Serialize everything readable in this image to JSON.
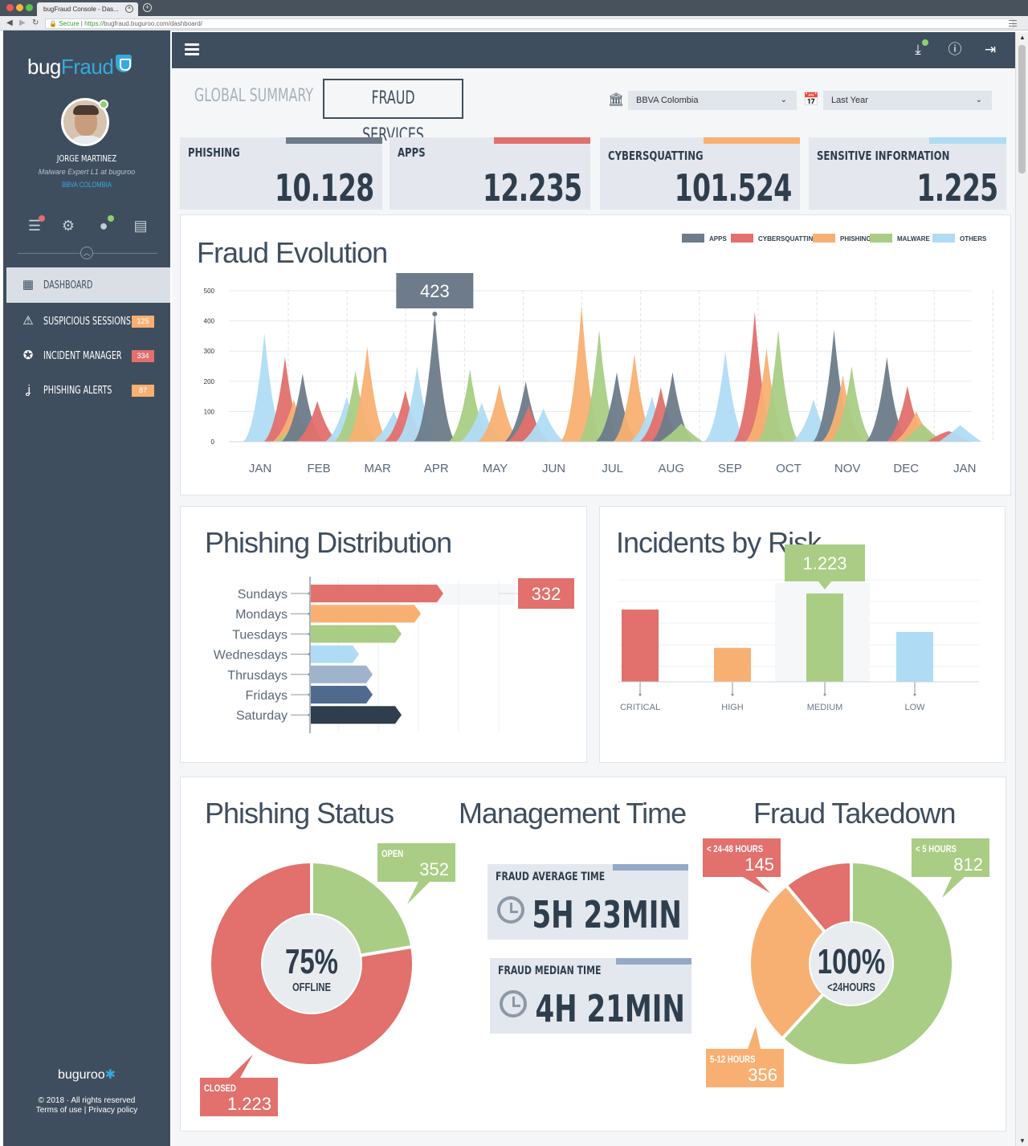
{
  "browser": {
    "tab_title": "bugFraud Console - Das...",
    "secure_label": "Secure",
    "url_scheme": "https://",
    "url_rest": "bugfraud.buguroo.com/dashboard/"
  },
  "sidebar": {
    "logo_bug": "bug",
    "logo_fraud": "Fraud",
    "user_name": "JORGE MARTINEZ",
    "user_role": "Malware Expert L1 at buguroo",
    "user_org": "BBVA COLOMBIA",
    "nav": [
      {
        "label": "DASHBOARD",
        "badge": ""
      },
      {
        "label": "SUSPICIOUS SESSIONS",
        "badge": "125"
      },
      {
        "label": "INCIDENT MANAGER",
        "badge": "334"
      },
      {
        "label": "PHISHING ALERTS",
        "badge": "87"
      }
    ],
    "footer_logo_a": "buguroo",
    "copyright": "© 2018 · All rights reserved",
    "terms": "Terms of use",
    "separator": "|",
    "privacy": "Privacy policy"
  },
  "colors": {
    "apps": "#6d7b8a",
    "cybersquatting": "#e2706c",
    "phishing": "#f8b072",
    "malware": "#a9cd84",
    "others": "#afdcf4",
    "thursdays": "#9fb3cc",
    "fridays": "#506a8e",
    "saturday": "#2f3e4d"
  },
  "header": {
    "tab_global": "GLOBAL SUMMARY",
    "tab_fraud": "FRAUD SERVICES",
    "entity_select": "BBVA Colombia",
    "period_select": "Last Year"
  },
  "kpis": [
    {
      "label": "PHISHING",
      "value": "10.128",
      "color": "#6d7b8a"
    },
    {
      "label": "APPS",
      "value": "12.235",
      "color": "#e2706c"
    },
    {
      "label": "CYBERSQUATTING",
      "value": "101.524",
      "color": "#f8b072"
    },
    {
      "label": "SENSITIVE INFORMATION",
      "value": "1.225",
      "color": "#afdcf4"
    }
  ],
  "chart_data": [
    {
      "type": "area",
      "title": "Fraud Evolution",
      "legend": [
        "APPS",
        "CYBERSQUATTING",
        "PHISHING",
        "MALWARE",
        "OTHERS"
      ],
      "legend_placement": "top-right",
      "categories": [
        "JAN",
        "FEB",
        "MAR",
        "APR",
        "MAY",
        "JUN",
        "JUL",
        "AUG",
        "SEP",
        "OCT",
        "NOV",
        "DEC",
        "JAN"
      ],
      "yticks": [
        "0",
        "100",
        "200",
        "300",
        "400",
        "500"
      ],
      "ylim": [
        0,
        500
      ],
      "highlight": {
        "label": "423",
        "value": 423,
        "month": "APR"
      },
      "peaks": [
        {
          "series": "OTHERS",
          "x": 0.1,
          "y": 360
        },
        {
          "series": "CYBERSQUATTING",
          "x": 0.45,
          "y": 280
        },
        {
          "series": "PHISHING",
          "x": 0.6,
          "y": 140
        },
        {
          "series": "MALWARE",
          "x": 0.65,
          "y": 60
        },
        {
          "series": "APPS",
          "x": 0.75,
          "y": 225
        },
        {
          "series": "CYBERSQUATTING",
          "x": 1.0,
          "y": 135
        },
        {
          "series": "OTHERS",
          "x": 1.5,
          "y": 150
        },
        {
          "series": "MALWARE",
          "x": 1.65,
          "y": 235
        },
        {
          "series": "PHISHING",
          "x": 1.85,
          "y": 315
        },
        {
          "series": "OTHERS",
          "x": 2.3,
          "y": 100
        },
        {
          "series": "CYBERSQUATTING",
          "x": 2.5,
          "y": 170
        },
        {
          "series": "OTHERS",
          "x": 2.7,
          "y": 250
        },
        {
          "series": "APPS",
          "x": 3.0,
          "y": 423
        },
        {
          "series": "MALWARE",
          "x": 3.6,
          "y": 240
        },
        {
          "series": "OTHERS",
          "x": 3.8,
          "y": 130
        },
        {
          "series": "PHISHING",
          "x": 4.1,
          "y": 190
        },
        {
          "series": "APPS",
          "x": 4.55,
          "y": 200
        },
        {
          "series": "CYBERSQUATTING",
          "x": 4.6,
          "y": 120
        },
        {
          "series": "OTHERS",
          "x": 4.85,
          "y": 110
        },
        {
          "series": "PHISHING",
          "x": 5.5,
          "y": 450
        },
        {
          "series": "MALWARE",
          "x": 5.8,
          "y": 370
        },
        {
          "series": "APPS",
          "x": 6.1,
          "y": 230
        },
        {
          "series": "PHISHING",
          "x": 6.4,
          "y": 290
        },
        {
          "series": "OTHERS",
          "x": 6.7,
          "y": 150
        },
        {
          "series": "CYBERSQUATTING",
          "x": 6.85,
          "y": 180
        },
        {
          "series": "APPS",
          "x": 7.05,
          "y": 230
        },
        {
          "series": "MALWARE",
          "x": 7.2,
          "y": 60
        },
        {
          "series": "OTHERS",
          "x": 7.95,
          "y": 300
        },
        {
          "series": "CYBERSQUATTING",
          "x": 8.45,
          "y": 430
        },
        {
          "series": "PHISHING",
          "x": 8.65,
          "y": 310
        },
        {
          "series": "MALWARE",
          "x": 8.85,
          "y": 370
        },
        {
          "series": "OTHERS",
          "x": 9.45,
          "y": 140
        },
        {
          "series": "APPS",
          "x": 9.8,
          "y": 370
        },
        {
          "series": "PHISHING",
          "x": 9.95,
          "y": 220
        },
        {
          "series": "MALWARE",
          "x": 10.1,
          "y": 250
        },
        {
          "series": "APPS",
          "x": 10.7,
          "y": 280
        },
        {
          "series": "CYBERSQUATTING",
          "x": 11.05,
          "y": 185
        },
        {
          "series": "PHISHING",
          "x": 11.2,
          "y": 100
        },
        {
          "series": "MALWARE",
          "x": 11.3,
          "y": 60
        },
        {
          "series": "CYBERSQUATTING",
          "x": 11.75,
          "y": 35
        },
        {
          "series": "OTHERS",
          "x": 11.95,
          "y": 55
        }
      ]
    },
    {
      "type": "bar",
      "orientation": "horizontal",
      "title": "Phishing Distribution",
      "categories": [
        "Sundays",
        "Mondays",
        "Tuesdays",
        "Wednesdays",
        "Thrusdays",
        "Fridays",
        "Saturday"
      ],
      "values": [
        332,
        276,
        228,
        122,
        156,
        156,
        228
      ],
      "highlight_label": "332"
    },
    {
      "type": "bar",
      "title": "Incidents by Risk",
      "categories": [
        "CRITICAL",
        "HIGH",
        "MEDIUM",
        "LOW"
      ],
      "values": [
        1000,
        470,
        1223,
        690
      ],
      "highlight_label": "1.223"
    },
    {
      "type": "pie",
      "title": "Phishing Status",
      "center_value": "75%",
      "center_label": "OFFLINE",
      "slices": [
        {
          "label": "OPEN",
          "value": 352,
          "display": "352"
        },
        {
          "label": "CLOSED",
          "value": 1223,
          "display": "1.223"
        }
      ]
    },
    {
      "type": "pie",
      "title": "Fraud Takedown",
      "center_value": "100%",
      "center_label": "<24HOURS",
      "slices": [
        {
          "label": "< 5 HOURS",
          "value": 812,
          "display": "812"
        },
        {
          "label": "5-12 HOURS",
          "value": 356,
          "display": "356"
        },
        {
          "label": "< 24-48 HOURS",
          "value": 145,
          "display": "145"
        }
      ]
    }
  ],
  "management": {
    "title": "Management Time",
    "avg_label": "FRAUD AVERAGE TIME",
    "avg_value": "5H 23MIN",
    "median_label": "FRAUD MEDIAN TIME",
    "median_value": "4H 21MIN"
  }
}
